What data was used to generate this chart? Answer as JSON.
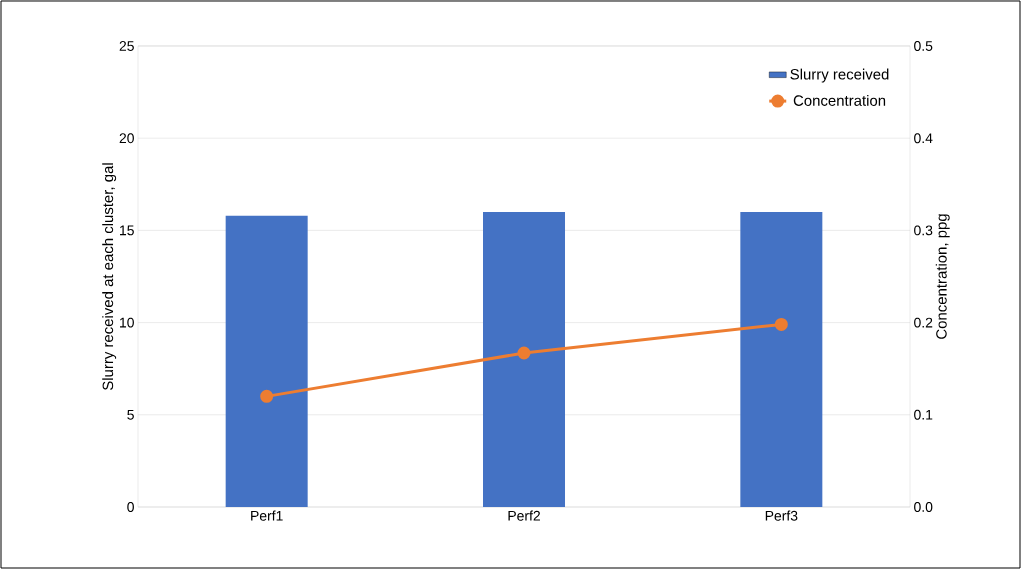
{
  "chart_data": {
    "type": "bar",
    "categories": [
      "Perf1",
      "Perf2",
      "Perf3"
    ],
    "ylabel": "Slurry received at each cluster, gal",
    "y2label": "Concentration, ppg",
    "ylim": [
      0,
      25
    ],
    "yticks": [
      0,
      5,
      10,
      15,
      20,
      25
    ],
    "y2lim": [
      0,
      0.5
    ],
    "y2ticks": [
      {
        "value": 0,
        "label": "0.0"
      },
      0.1,
      0.2,
      0.3,
      0.4,
      0.5
    ],
    "grid": "y",
    "legend": "top right",
    "series": [
      {
        "name": "Slurry received",
        "color": "#4472c4",
        "values": [
          15.8,
          16,
          16
        ]
      },
      {
        "name": "Concentration",
        "type": "line",
        "axis": "y2",
        "color": "#ed7d31",
        "marker": "circle",
        "values": [
          0.12,
          0.167,
          0.198
        ]
      }
    ]
  }
}
